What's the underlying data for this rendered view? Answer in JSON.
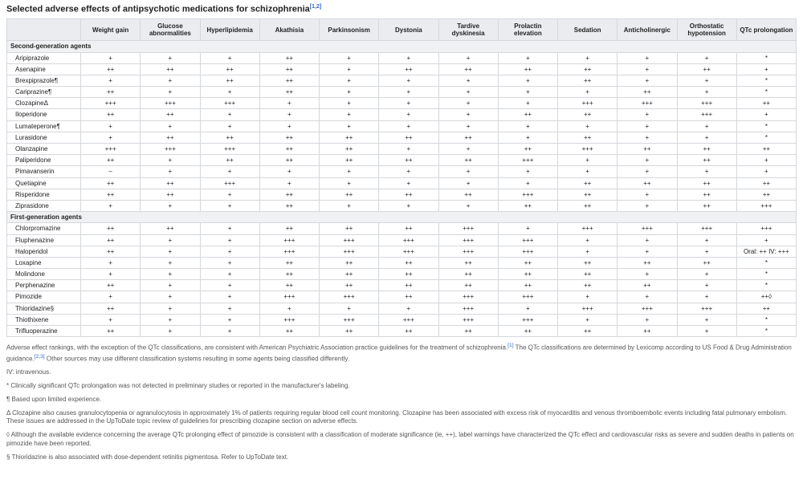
{
  "title": {
    "text": "Selected adverse effects of antipsychotic medications for schizophrenia",
    "refs": "[1,2]"
  },
  "columns": [
    "Weight gain",
    "Glucose abnormalities",
    "Hyperlipidemia",
    "Akathisia",
    "Parkinsonism",
    "Dystonia",
    "Tardive dyskinesia",
    "Prolactin elevation",
    "Sedation",
    "Anticholinergic",
    "Orthostatic hypotension",
    "QTc prolongation"
  ],
  "sections": [
    {
      "label": "Second-generation agents",
      "rows": [
        {
          "name": "Aripiprazole",
          "cells": [
            "+",
            "+",
            "+",
            "++",
            "+",
            "+",
            "+",
            "+",
            "+",
            "+",
            "+",
            "*"
          ]
        },
        {
          "name": "Asenapine",
          "cells": [
            "++",
            "++",
            "++",
            "++",
            "+",
            "++",
            "++",
            "++",
            "++",
            "+",
            "++",
            "+"
          ]
        },
        {
          "name": "Brexpiprazole¶",
          "cells": [
            "+",
            "+",
            "++",
            "++",
            "+",
            "+",
            "+",
            "+",
            "++",
            "+",
            "+",
            "*"
          ]
        },
        {
          "name": "Cariprazine¶",
          "cells": [
            "++",
            "+",
            "+",
            "++",
            "+",
            "+",
            "+",
            "+",
            "+",
            "++",
            "+",
            "*"
          ]
        },
        {
          "name": "ClozapineΔ",
          "cells": [
            "+++",
            "+++",
            "+++",
            "+",
            "+",
            "+",
            "+",
            "+",
            "+++",
            "+++",
            "+++",
            "++"
          ]
        },
        {
          "name": "Iloperidone",
          "cells": [
            "++",
            "++",
            "+",
            "+",
            "+",
            "+",
            "+",
            "++",
            "++",
            "+",
            "+++",
            "+"
          ]
        },
        {
          "name": "Lumateperone¶",
          "cells": [
            "+",
            "+",
            "+",
            "+",
            "+",
            "+",
            "+",
            "+",
            "+",
            "+",
            "+",
            "*"
          ]
        },
        {
          "name": "Lurasidone",
          "cells": [
            "+",
            "++",
            "++",
            "++",
            "++",
            "++",
            "++",
            "+",
            "++",
            "+",
            "+",
            "*"
          ]
        },
        {
          "name": "Olanzapine",
          "cells": [
            "+++",
            "+++",
            "+++",
            "++",
            "++",
            "+",
            "+",
            "++",
            "+++",
            "++",
            "++",
            "++"
          ]
        },
        {
          "name": "Paliperidone",
          "cells": [
            "++",
            "+",
            "++",
            "++",
            "++",
            "++",
            "++",
            "+++",
            "+",
            "+",
            "++",
            "+"
          ]
        },
        {
          "name": "Pimavanserin",
          "cells": [
            "–",
            "+",
            "+",
            "+",
            "+",
            "+",
            "+",
            "+",
            "+",
            "+",
            "+",
            "+"
          ]
        },
        {
          "name": "Quetiapine",
          "cells": [
            "++",
            "++",
            "+++",
            "+",
            "+",
            "+",
            "+",
            "+",
            "++",
            "++",
            "++",
            "++"
          ]
        },
        {
          "name": "Risperidone",
          "cells": [
            "++",
            "++",
            "+",
            "++",
            "++",
            "++",
            "++",
            "+++",
            "++",
            "+",
            "++",
            "++"
          ]
        },
        {
          "name": "Ziprasidone",
          "cells": [
            "+",
            "+",
            "+",
            "++",
            "+",
            "+",
            "+",
            "++",
            "++",
            "+",
            "++",
            "+++"
          ]
        }
      ]
    },
    {
      "label": "First-generation agents",
      "rows": [
        {
          "name": "Chlorpromazine",
          "cells": [
            "++",
            "++",
            "+",
            "++",
            "++",
            "++",
            "+++",
            "+",
            "+++",
            "+++",
            "+++",
            "+++"
          ]
        },
        {
          "name": "Fluphenazine",
          "cells": [
            "++",
            "+",
            "+",
            "+++",
            "+++",
            "+++",
            "+++",
            "+++",
            "+",
            "+",
            "+",
            "+"
          ]
        },
        {
          "name": "Haloperidol",
          "cells": [
            "++",
            "+",
            "+",
            "+++",
            "+++",
            "+++",
            "+++",
            "+++",
            "+",
            "+",
            "+",
            "Oral: ++ IV: +++"
          ]
        },
        {
          "name": "Loxapine",
          "cells": [
            "+",
            "+",
            "+",
            "++",
            "++",
            "++",
            "++",
            "++",
            "++",
            "++",
            "++",
            "*"
          ]
        },
        {
          "name": "Molindone",
          "cells": [
            "+",
            "+",
            "+",
            "++",
            "++",
            "++",
            "++",
            "++",
            "++",
            "+",
            "+",
            "*"
          ]
        },
        {
          "name": "Perphenazine",
          "cells": [
            "++",
            "+",
            "+",
            "++",
            "++",
            "++",
            "++",
            "++",
            "++",
            "++",
            "+",
            "*"
          ]
        },
        {
          "name": "Pimozide",
          "cells": [
            "+",
            "+",
            "+",
            "+++",
            "+++",
            "++",
            "+++",
            "+++",
            "+",
            "+",
            "+",
            "++◊"
          ]
        },
        {
          "name": "Thioridazine§",
          "cells": [
            "++",
            "+",
            "+",
            "+",
            "+",
            "+",
            "+++",
            "+",
            "+++",
            "+++",
            "+++",
            "++"
          ]
        },
        {
          "name": "Thiothixene",
          "cells": [
            "+",
            "+",
            "+",
            "+++",
            "+++",
            "+++",
            "+++",
            "+++",
            "+",
            "+",
            "+",
            "*"
          ]
        },
        {
          "name": "Trifluoperazine",
          "cells": [
            "++",
            "+",
            "+",
            "++",
            "++",
            "++",
            "++",
            "++",
            "++",
            "++",
            "+",
            "*"
          ]
        }
      ]
    }
  ],
  "footnotes": [
    {
      "text": "Adverse effect rankings, with the exception of the QTc classifications, are consistent with American Psychiatric Association practice guidelines for the treatment of schizophrenia.[1] The QTc classifications are determined by Lexicomp according to US Food & Drug Administration guidance.[2,3] Other sources may use different classification systems resulting in some agents being classified differently."
    },
    {
      "text": "IV: intravenous."
    },
    {
      "text": "* Clinically significant QTc prolongation was not detected in preliminary studies or reported in the manufacturer's labeling."
    },
    {
      "text": "¶ Based upon limited experience."
    },
    {
      "text": "Δ Clozapine also causes granulocytopenia or agranulocytosis in approximately 1% of patients requiring regular blood cell count monitoring. Clozapine has been associated with excess risk of myocarditis and venous thromboembolic events including fatal pulmonary embolism. These issues are addressed in the UpToDate topic review of guidelines for prescribing clozapine section on adverse effects."
    },
    {
      "text": "◊ Although the available evidence concerning the average QTc prolonging effect of pimozide is consistent with a classification of moderate significance (ie, ++), label warnings have characterized the QTc effect and cardiovascular risks as severe and sudden deaths in patients on pimozide have been reported."
    },
    {
      "text": "§ Thioridazine is also associated with dose-dependent retinitis pigmentosa. Refer to UpToDate text."
    }
  ]
}
